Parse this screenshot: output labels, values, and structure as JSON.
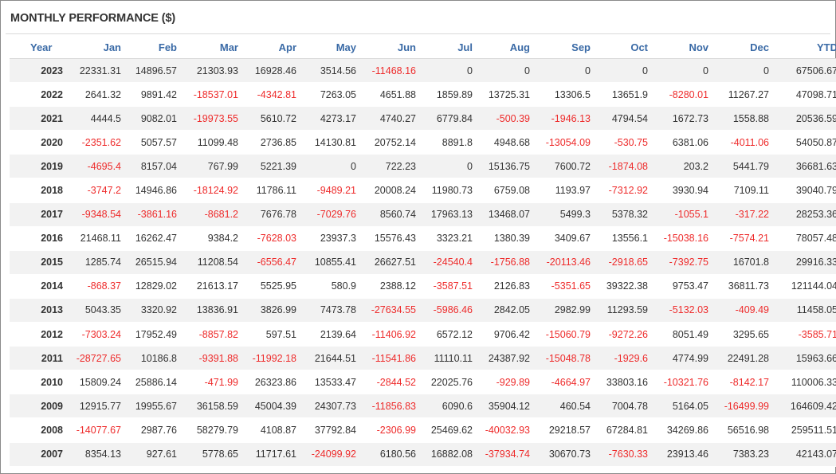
{
  "title": "MONTHLY PERFORMANCE ($)",
  "headers": [
    "Year",
    "Jan",
    "Feb",
    "Mar",
    "Apr",
    "May",
    "Jun",
    "Jul",
    "Aug",
    "Sep",
    "Oct",
    "Nov",
    "Dec",
    "YTD"
  ],
  "colors": {
    "header": "#3a6aa6",
    "negative": "#ee2b2b",
    "text": "#333333",
    "stripe": "#f2f2f2"
  },
  "rows": [
    [
      "2023",
      "22331.31",
      "14896.57",
      "21303.93",
      "16928.46",
      "3514.56",
      "-11468.16",
      "0",
      "0",
      "0",
      "0",
      "0",
      "0",
      "67506.67"
    ],
    [
      "2022",
      "2641.32",
      "9891.42",
      "-18537.01",
      "-4342.81",
      "7263.05",
      "4651.88",
      "1859.89",
      "13725.31",
      "13306.5",
      "13651.9",
      "-8280.01",
      "11267.27",
      "47098.71"
    ],
    [
      "2021",
      "4444.5",
      "9082.01",
      "-19973.55",
      "5610.72",
      "4273.17",
      "4740.27",
      "6779.84",
      "-500.39",
      "-1946.13",
      "4794.54",
      "1672.73",
      "1558.88",
      "20536.59"
    ],
    [
      "2020",
      "-2351.62",
      "5057.57",
      "11099.48",
      "2736.85",
      "14130.81",
      "20752.14",
      "8891.8",
      "4948.68",
      "-13054.09",
      "-530.75",
      "6381.06",
      "-4011.06",
      "54050.87"
    ],
    [
      "2019",
      "-4695.4",
      "8157.04",
      "767.99",
      "5221.39",
      "0",
      "722.23",
      "0",
      "15136.75",
      "7600.72",
      "-1874.08",
      "203.2",
      "5441.79",
      "36681.63"
    ],
    [
      "2018",
      "-3747.2",
      "14946.86",
      "-18124.92",
      "11786.11",
      "-9489.21",
      "20008.24",
      "11980.73",
      "6759.08",
      "1193.97",
      "-7312.92",
      "3930.94",
      "7109.11",
      "39040.79"
    ],
    [
      "2017",
      "-9348.54",
      "-3861.16",
      "-8681.2",
      "7676.78",
      "-7029.76",
      "8560.74",
      "17963.13",
      "13468.07",
      "5499.3",
      "5378.32",
      "-1055.1",
      "-317.22",
      "28253.36"
    ],
    [
      "2016",
      "21468.11",
      "16262.47",
      "9384.2",
      "-7628.03",
      "23937.3",
      "15576.43",
      "3323.21",
      "1380.39",
      "3409.67",
      "13556.1",
      "-15038.16",
      "-7574.21",
      "78057.48"
    ],
    [
      "2015",
      "1285.74",
      "26515.94",
      "11208.54",
      "-6556.47",
      "10855.41",
      "26627.51",
      "-24540.4",
      "-1756.88",
      "-20113.46",
      "-2918.65",
      "-7392.75",
      "16701.8",
      "29916.33"
    ],
    [
      "2014",
      "-868.37",
      "12829.02",
      "21613.17",
      "5525.95",
      "580.9",
      "2388.12",
      "-3587.51",
      "2126.83",
      "-5351.65",
      "39322.38",
      "9753.47",
      "36811.73",
      "121144.04"
    ],
    [
      "2013",
      "5043.35",
      "3320.92",
      "13836.91",
      "3826.99",
      "7473.78",
      "-27634.55",
      "-5986.46",
      "2842.05",
      "2982.99",
      "11293.59",
      "-5132.03",
      "-409.49",
      "11458.05"
    ],
    [
      "2012",
      "-7303.24",
      "17952.49",
      "-8857.82",
      "597.51",
      "2139.64",
      "-11406.92",
      "6572.12",
      "9706.42",
      "-15060.79",
      "-9272.26",
      "8051.49",
      "3295.65",
      "-3585.71"
    ],
    [
      "2011",
      "-28727.65",
      "10186.8",
      "-9391.88",
      "-11992.18",
      "21644.51",
      "-11541.86",
      "11110.11",
      "24387.92",
      "-15048.78",
      "-1929.6",
      "4774.99",
      "22491.28",
      "15963.66"
    ],
    [
      "2010",
      "15809.24",
      "25886.14",
      "-471.99",
      "26323.86",
      "13533.47",
      "-2844.52",
      "22025.76",
      "-929.89",
      "-4664.97",
      "33803.16",
      "-10321.76",
      "-8142.17",
      "110006.33"
    ],
    [
      "2009",
      "12915.77",
      "19955.67",
      "36158.59",
      "45004.39",
      "24307.73",
      "-11856.83",
      "6090.6",
      "35904.12",
      "460.54",
      "7004.78",
      "5164.05",
      "-16499.99",
      "164609.42"
    ],
    [
      "2008",
      "-14077.67",
      "2987.76",
      "58279.79",
      "4108.87",
      "37792.84",
      "-2306.99",
      "25469.62",
      "-40032.93",
      "29218.57",
      "67284.81",
      "34269.86",
      "56516.98",
      "259511.51"
    ],
    [
      "2007",
      "8354.13",
      "927.61",
      "5778.65",
      "11717.61",
      "-24099.92",
      "6180.56",
      "16882.08",
      "-37934.74",
      "30670.73",
      "-7630.33",
      "23913.46",
      "7383.23",
      "42143.07"
    ]
  ]
}
